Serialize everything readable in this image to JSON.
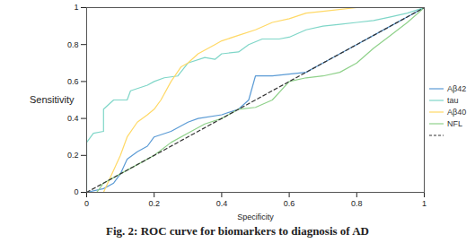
{
  "chart_data": {
    "type": "line",
    "title": "Fig. 2: ROC curve for biomarkers to diagnosis of AD",
    "x_label": "Specificity",
    "y_label": "Sensitivity",
    "xlim": [
      0,
      1
    ],
    "ylim": [
      0,
      1
    ],
    "xticks": [
      0,
      0.2,
      0.4,
      0.6,
      0.8,
      1
    ],
    "yticks": [
      0,
      0.2,
      0.4,
      0.6,
      0.8,
      1
    ],
    "grid": false,
    "legend": "right",
    "series": [
      {
        "name": "Aβ42",
        "color": "#5b9bd5",
        "line_style": "solid",
        "x": [
          0,
          0.05,
          0.08,
          0.1,
          0.12,
          0.15,
          0.18,
          0.2,
          0.25,
          0.3,
          0.33,
          0.4,
          0.45,
          0.48,
          0.5,
          0.55,
          0.6,
          0.65,
          0.7,
          0.75,
          0.8,
          0.85,
          0.9,
          0.95,
          1
        ],
        "values": [
          0,
          0.02,
          0.05,
          0.1,
          0.18,
          0.22,
          0.25,
          0.3,
          0.33,
          0.38,
          0.4,
          0.42,
          0.45,
          0.5,
          0.63,
          0.63,
          0.64,
          0.65,
          0.7,
          0.75,
          0.8,
          0.85,
          0.9,
          0.95,
          1
        ]
      },
      {
        "name": "tau",
        "color": "#7fd6c8",
        "line_style": "solid",
        "x": [
          0,
          0,
          0.02,
          0.05,
          0.05,
          0.08,
          0.12,
          0.13,
          0.18,
          0.2,
          0.23,
          0.27,
          0.3,
          0.35,
          0.38,
          0.4,
          0.45,
          0.48,
          0.52,
          0.57,
          0.6,
          0.65,
          0.7,
          0.75,
          0.8,
          0.85,
          0.9,
          0.95,
          1
        ],
        "values": [
          0,
          0.27,
          0.32,
          0.33,
          0.45,
          0.5,
          0.5,
          0.55,
          0.58,
          0.6,
          0.62,
          0.63,
          0.7,
          0.73,
          0.72,
          0.75,
          0.76,
          0.8,
          0.83,
          0.83,
          0.84,
          0.88,
          0.9,
          0.91,
          0.92,
          0.93,
          0.95,
          0.97,
          1
        ]
      },
      {
        "name": "Aβ40",
        "color": "#ffd966",
        "line_style": "solid",
        "x": [
          0,
          0.05,
          0.1,
          0.12,
          0.15,
          0.18,
          0.2,
          0.22,
          0.25,
          0.28,
          0.3,
          0.33,
          0.38,
          0.4,
          0.45,
          0.5,
          0.55,
          0.6,
          0.65,
          0.7,
          0.8,
          1
        ],
        "values": [
          0,
          0,
          0.2,
          0.3,
          0.38,
          0.42,
          0.45,
          0.5,
          0.6,
          0.68,
          0.7,
          0.75,
          0.8,
          0.82,
          0.85,
          0.88,
          0.92,
          0.94,
          0.97,
          0.98,
          1,
          1
        ]
      },
      {
        "name": "NFL",
        "color": "#8fd18a",
        "line_style": "solid",
        "x": [
          0,
          0.03,
          0.05,
          0.1,
          0.15,
          0.2,
          0.25,
          0.3,
          0.35,
          0.4,
          0.45,
          0.5,
          0.55,
          0.6,
          0.65,
          0.7,
          0.75,
          0.8,
          0.85,
          0.9,
          0.95,
          1
        ],
        "values": [
          0,
          0,
          0.05,
          0.1,
          0.15,
          0.2,
          0.27,
          0.32,
          0.37,
          0.4,
          0.45,
          0.46,
          0.5,
          0.6,
          0.62,
          0.63,
          0.65,
          0.7,
          0.78,
          0.85,
          0.92,
          1
        ]
      },
      {
        "color": "#333333",
        "line_style": "dashed",
        "x": [
          0,
          1
        ],
        "values": [
          0,
          1
        ]
      }
    ]
  }
}
